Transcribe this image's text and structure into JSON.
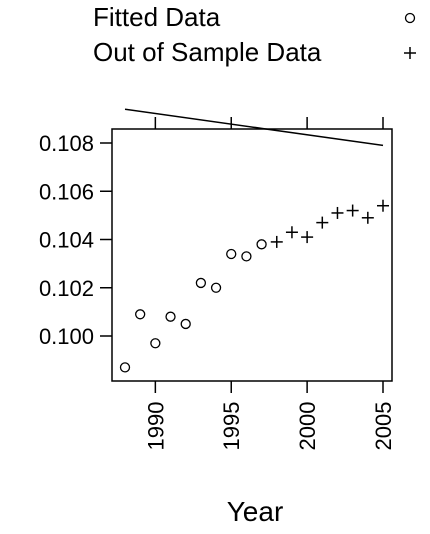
{
  "chart_data": {
    "type": "scatter",
    "xlabel": "Year",
    "ylabel": "",
    "xlim": [
      1987.5,
      2005.5
    ],
    "ylim": [
      0.0983,
      0.1085
    ],
    "x_ticks": [
      1990,
      1995,
      2000,
      2005
    ],
    "x_tick_labels": [
      "1990",
      "1995",
      "2000",
      "2005"
    ],
    "y_ticks": [
      0.1,
      0.102,
      0.104,
      0.106,
      0.108
    ],
    "y_tick_labels": [
      "0.100",
      "0.102",
      "0.104",
      "0.106",
      "0.108"
    ],
    "legend_position": "top-right",
    "series": [
      {
        "name": "Fitted Data",
        "marker": "circle",
        "x": [
          1988,
          1989,
          1990,
          1991,
          1992,
          1993,
          1994,
          1995,
          1996,
          1997
        ],
        "y": [
          0.0987,
          0.1009,
          0.0997,
          0.1008,
          0.1005,
          0.1022,
          0.102,
          0.1034,
          0.1033,
          0.1038
        ]
      },
      {
        "name": "Out of Sample Data",
        "marker": "plus",
        "x": [
          1998,
          1999,
          2000,
          2001,
          2002,
          2003,
          2004,
          2005
        ],
        "y": [
          0.1039,
          0.1043,
          0.1041,
          0.1047,
          0.1051,
          0.1052,
          0.1049,
          0.1054
        ]
      }
    ],
    "fit_line": {
      "x": [
        1988,
        2005
      ],
      "y": [
        0.1094,
        0.1079
      ]
    }
  }
}
